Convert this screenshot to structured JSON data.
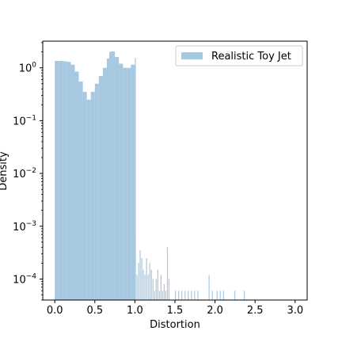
{
  "chart_data": {
    "type": "bar",
    "xlabel": "Distortion",
    "ylabel": "Density",
    "yscale": "log",
    "xlim": [
      -0.15,
      3.15
    ],
    "ylim": [
      4e-05,
      3.2
    ],
    "grid": false,
    "legend_placement": "top-right",
    "x_ticks": [
      {
        "value": 0.0,
        "label": "0.0"
      },
      {
        "value": 0.5,
        "label": "0.5"
      },
      {
        "value": 1.0,
        "label": "1.0"
      },
      {
        "value": 1.5,
        "label": "1.5"
      },
      {
        "value": 2.0,
        "label": "2.0"
      },
      {
        "value": 2.5,
        "label": "2.5"
      },
      {
        "value": 3.0,
        "label": "3.0"
      }
    ],
    "y_ticks": [
      {
        "value": 1,
        "base": "10",
        "exp": "0"
      },
      {
        "value": 0.1,
        "base": "10",
        "exp": "−1"
      },
      {
        "value": 0.01,
        "base": "10",
        "exp": "−2"
      },
      {
        "value": 0.001,
        "base": "10",
        "exp": "−3"
      },
      {
        "value": 0.0001,
        "base": "10",
        "exp": "−4"
      }
    ],
    "series": [
      {
        "name": "Realistic Toy Jet",
        "color": "#a6c8e1",
        "x": [
          0.0,
          0.05,
          0.1,
          0.15,
          0.2,
          0.25,
          0.3,
          0.35,
          0.4,
          0.45,
          0.5,
          0.55,
          0.6,
          0.65,
          0.68,
          0.7,
          0.75,
          0.8,
          0.85,
          0.9,
          0.95,
          1.0,
          1.0,
          1.02,
          1.04,
          1.06,
          1.08,
          1.1,
          1.12,
          1.14,
          1.16,
          1.18,
          1.2,
          1.22,
          1.24,
          1.26,
          1.28,
          1.3,
          1.32,
          1.34,
          1.36,
          1.38,
          1.4,
          1.42,
          1.5,
          1.54,
          1.58,
          1.62,
          1.66,
          1.7,
          1.74,
          1.78,
          1.92,
          1.96,
          2.02,
          2.06,
          2.1,
          2.24,
          2.36
        ],
        "density": [
          1.35,
          1.35,
          1.33,
          1.3,
          1.15,
          0.85,
          0.55,
          0.35,
          0.25,
          0.35,
          0.5,
          0.7,
          1.0,
          1.5,
          2.0,
          2.05,
          1.6,
          1.2,
          1.0,
          1.0,
          1.15,
          1.55,
          0.0007,
          0.00012,
          0.0002,
          0.00035,
          0.00025,
          0.00015,
          0.00012,
          0.00025,
          0.00012,
          0.0002,
          0.00015,
          0.0001,
          6e-05,
          0.0001,
          0.00015,
          6e-05,
          0.00012,
          6e-05,
          8e-05,
          6e-05,
          0.0004,
          0.0001,
          6e-05,
          6e-05,
          6e-05,
          6e-05,
          6e-05,
          6e-05,
          6e-05,
          6e-05,
          0.00012,
          6e-05,
          6e-05,
          6e-05,
          6e-05,
          6e-05,
          6e-05
        ]
      }
    ]
  }
}
